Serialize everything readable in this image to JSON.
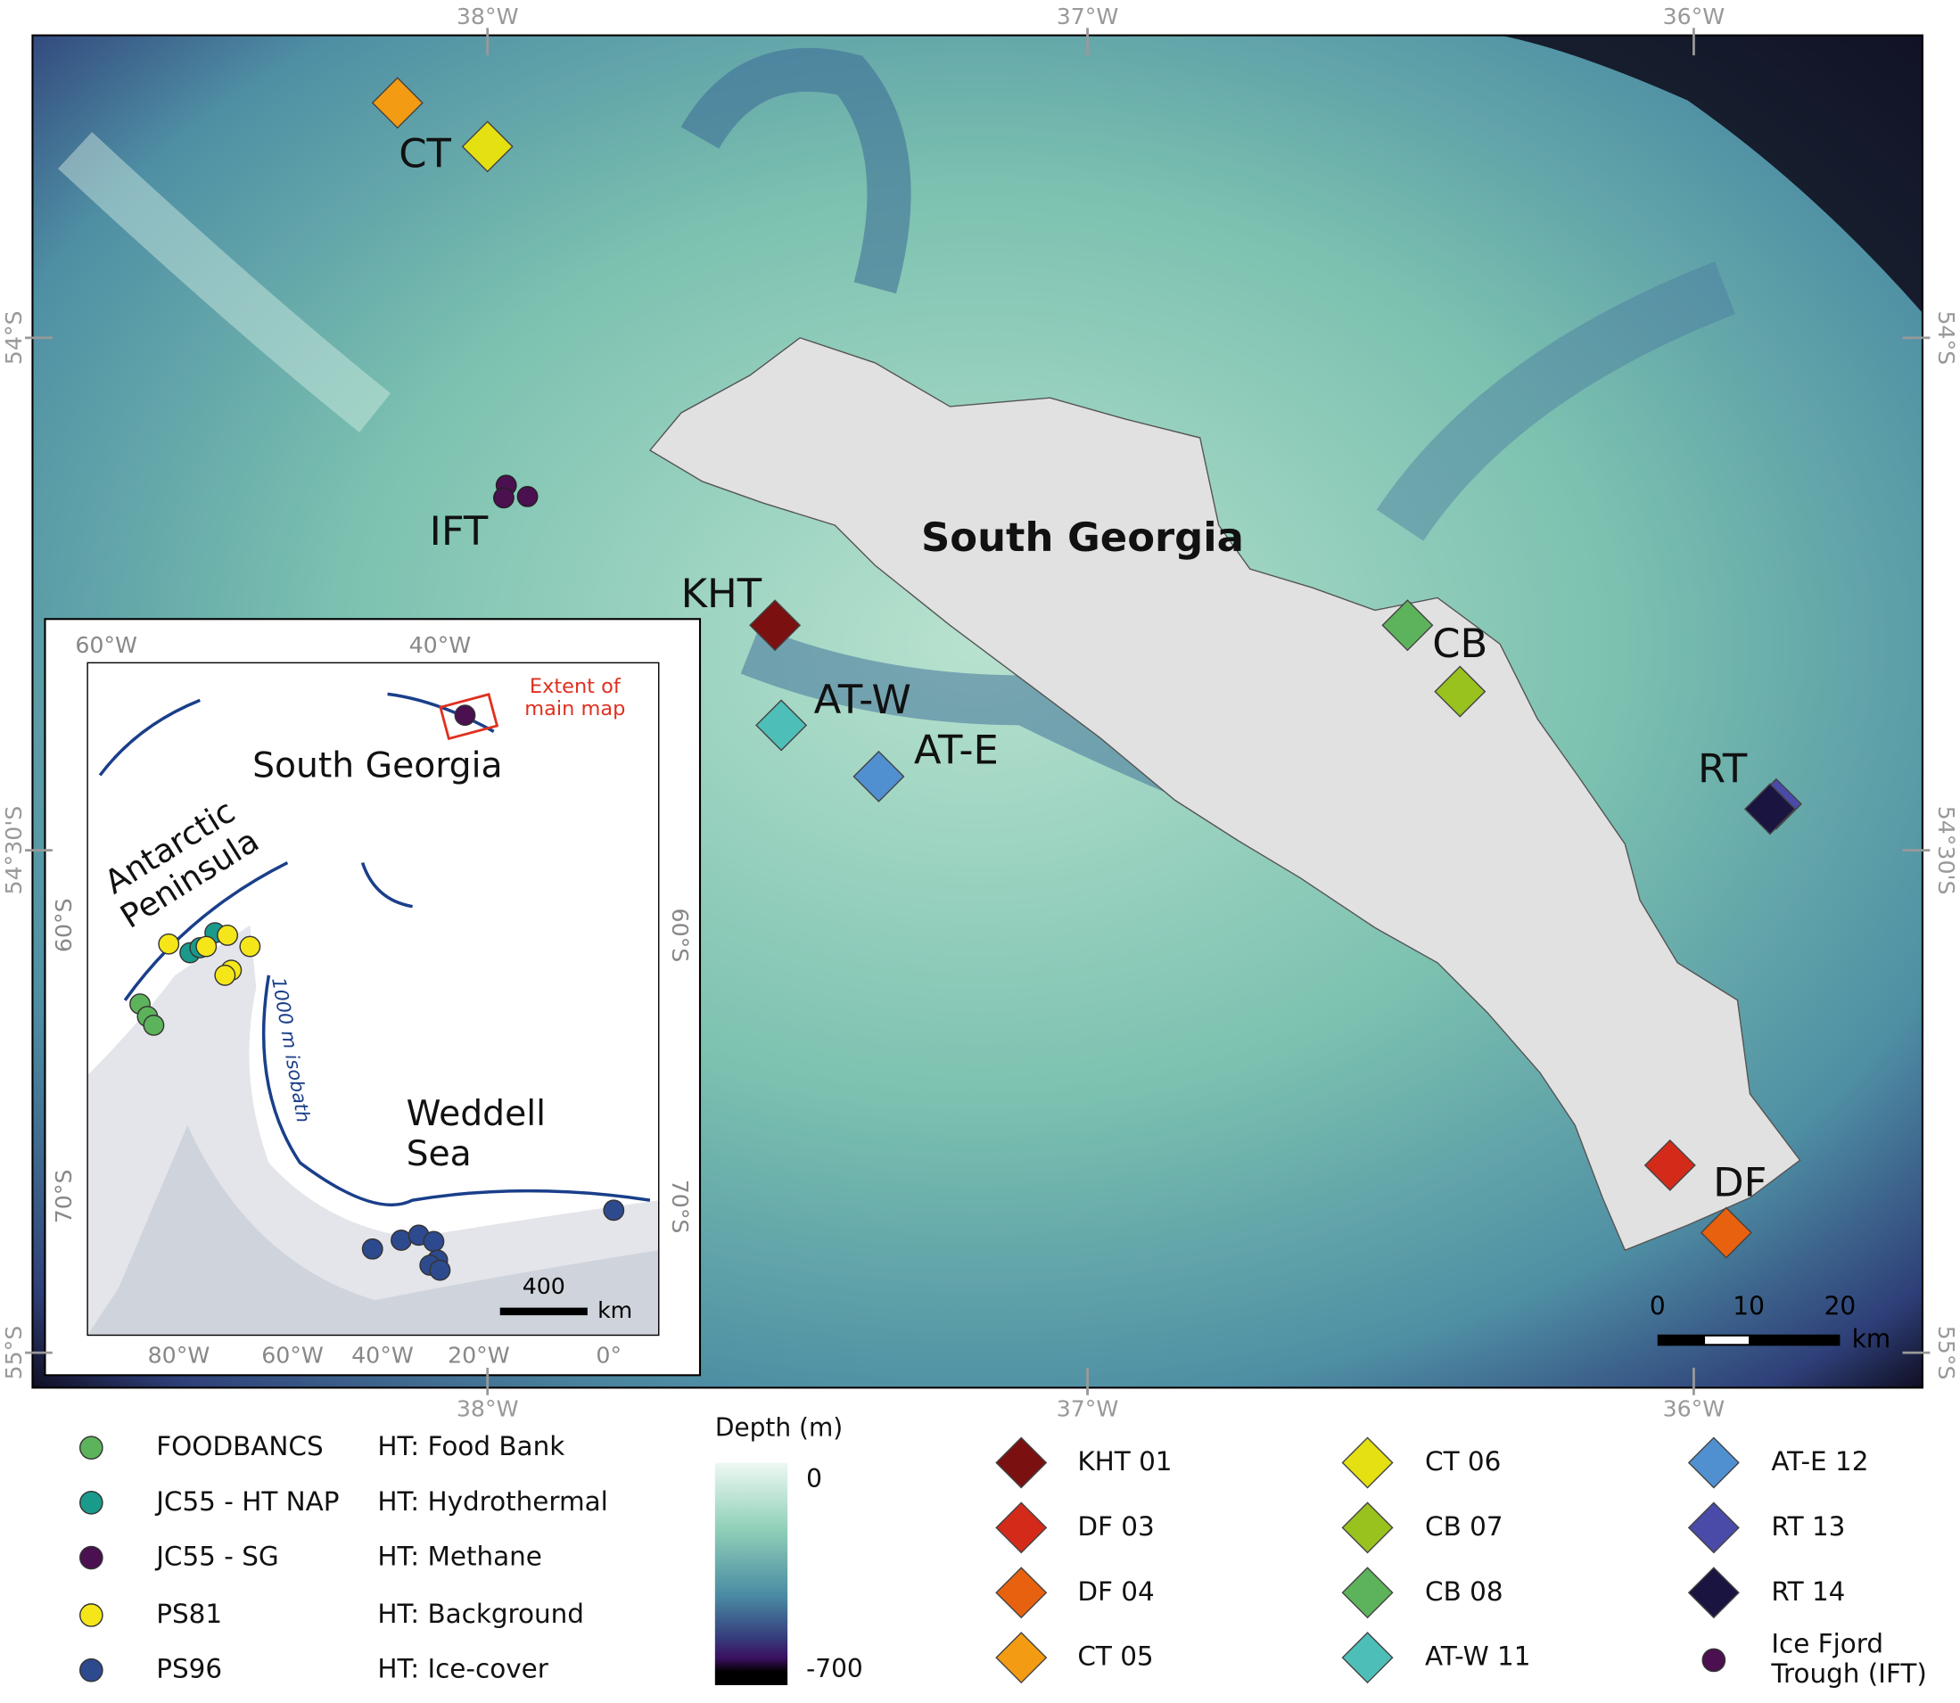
{
  "main_map": {
    "title": "South Georgia",
    "sites": [
      "CT",
      "IFT",
      "KHT",
      "AT-W",
      "AT-E",
      "CB",
      "RT",
      "DF"
    ],
    "lon_labels": [
      "38°W",
      "37°W",
      "36°W"
    ],
    "lat_labels": [
      "54°S",
      "54°30'S",
      "55°S"
    ],
    "scale_bar": {
      "ticks": [
        0,
        10,
        20
      ],
      "unit": "km"
    }
  },
  "inset": {
    "lon_labels_top": [
      "60°W",
      "40°W"
    ],
    "lon_labels_bottom": [
      "80°W",
      "60°W",
      "40°W",
      "20°W",
      "0°"
    ],
    "lat_labels_left": [
      "60°S",
      "70°S"
    ],
    "lat_labels_right": [
      "60°S",
      "70°S"
    ],
    "places": [
      "South Georgia",
      "Antarctic Peninsula",
      "Weddell Sea"
    ],
    "extent_label": "Extent of main map",
    "isobath_label": "1000 m isobath",
    "scale_bar": {
      "value": 400,
      "unit": "km"
    }
  },
  "legend": {
    "regions": [
      {
        "name": "FOODBANCS",
        "type": "HT: Food Bank",
        "color": "#5db35b"
      },
      {
        "name": "JC55 - HT NAP",
        "type": "HT: Hydrothermal",
        "color": "#1a9a8a"
      },
      {
        "name": "JC55 - SG",
        "type": "HT: Methane",
        "color": "#4a1050"
      },
      {
        "name": "PS81",
        "type": "HT: Background",
        "color": "#f5e61a"
      },
      {
        "name": "PS96",
        "type": "HT: Ice-cover",
        "color": "#2e4a8e"
      }
    ],
    "depth": {
      "title": "Depth (m)",
      "max": 0,
      "min": -700
    },
    "samples": [
      {
        "name": "KHT 01",
        "color": "#7a1010"
      },
      {
        "name": "DF 03",
        "color": "#d42a1a"
      },
      {
        "name": "DF 04",
        "color": "#e8610f"
      },
      {
        "name": "CT 05",
        "color": "#f29b13"
      },
      {
        "name": "CT 06",
        "color": "#e4e012"
      },
      {
        "name": "CB 07",
        "color": "#9ac21e"
      },
      {
        "name": "CB 08",
        "color": "#5db35b"
      },
      {
        "name": "AT-W 11",
        "color": "#4dbfb8"
      },
      {
        "name": "AT-E 12",
        "color": "#5090d0"
      },
      {
        "name": "RT 13",
        "color": "#4a4aa8"
      },
      {
        "name": "RT 14",
        "color": "#1a1440"
      }
    ],
    "ift": {
      "name": "Ice Fjord Trough (IFT)",
      "color": "#4a1050"
    }
  }
}
